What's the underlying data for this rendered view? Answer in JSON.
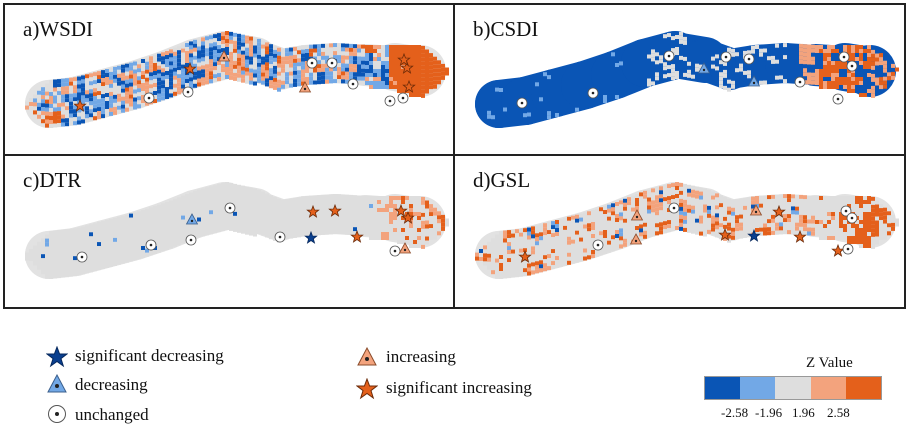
{
  "colors": {
    "sig_dec": "#0a55b5",
    "dec": "#72a8e6",
    "unchanged": "#dedede",
    "inc": "#f3a37d",
    "sig_inc": "#e4601b"
  },
  "panels": [
    {
      "id": "a",
      "label": "a)WSDI",
      "style": "mixed",
      "markers": [
        {
          "t": "sinc",
          "x": 185,
          "y": 64
        },
        {
          "t": "inc",
          "x": 219,
          "y": 52
        },
        {
          "t": "sinc",
          "x": 75,
          "y": 101
        },
        {
          "t": "unch",
          "x": 144,
          "y": 93
        },
        {
          "t": "unch",
          "x": 183,
          "y": 87
        },
        {
          "t": "inc",
          "x": 300,
          "y": 83
        },
        {
          "t": "unch",
          "x": 307,
          "y": 58
        },
        {
          "t": "unch",
          "x": 327,
          "y": 58
        },
        {
          "t": "unch",
          "x": 348,
          "y": 79
        },
        {
          "t": "unch",
          "x": 385,
          "y": 96
        },
        {
          "t": "unch",
          "x": 398,
          "y": 93
        },
        {
          "t": "sinc",
          "x": 402,
          "y": 63
        },
        {
          "t": "sinc",
          "x": 399,
          "y": 55
        },
        {
          "t": "sinc",
          "x": 404,
          "y": 82
        }
      ]
    },
    {
      "id": "b",
      "label": "b)CSDI",
      "style": "blue",
      "markers": [
        {
          "t": "unch",
          "x": 67,
          "y": 98
        },
        {
          "t": "unch",
          "x": 138,
          "y": 88
        },
        {
          "t": "unch",
          "x": 214,
          "y": 51
        },
        {
          "t": "dec",
          "x": 249,
          "y": 64
        },
        {
          "t": "unch",
          "x": 271,
          "y": 52
        },
        {
          "t": "unch",
          "x": 294,
          "y": 54
        },
        {
          "t": "dec",
          "x": 299,
          "y": 77
        },
        {
          "t": "unch",
          "x": 345,
          "y": 77
        },
        {
          "t": "unch",
          "x": 383,
          "y": 94
        },
        {
          "t": "unch",
          "x": 389,
          "y": 52
        },
        {
          "t": "unch",
          "x": 397,
          "y": 61
        }
      ]
    },
    {
      "id": "c",
      "label": "c)DTR",
      "style": "light",
      "markers": [
        {
          "t": "unch",
          "x": 77,
          "y": 101
        },
        {
          "t": "unch",
          "x": 146,
          "y": 89
        },
        {
          "t": "dec",
          "x": 187,
          "y": 64
        },
        {
          "t": "unch",
          "x": 186,
          "y": 84
        },
        {
          "t": "unch",
          "x": 225,
          "y": 52
        },
        {
          "t": "unch",
          "x": 275,
          "y": 81
        },
        {
          "t": "sinc",
          "x": 308,
          "y": 56
        },
        {
          "t": "sinc",
          "x": 330,
          "y": 55
        },
        {
          "t": "sdec",
          "x": 306,
          "y": 82
        },
        {
          "t": "sinc",
          "x": 352,
          "y": 81
        },
        {
          "t": "unch",
          "x": 390,
          "y": 95
        },
        {
          "t": "inc",
          "x": 400,
          "y": 93
        },
        {
          "t": "sinc",
          "x": 396,
          "y": 55
        },
        {
          "t": "sinc",
          "x": 403,
          "y": 62
        }
      ]
    },
    {
      "id": "d",
      "label": "d)GSL",
      "style": "light-orange",
      "markers": [
        {
          "t": "sinc",
          "x": 70,
          "y": 101
        },
        {
          "t": "unch",
          "x": 143,
          "y": 89
        },
        {
          "t": "inc",
          "x": 182,
          "y": 60
        },
        {
          "t": "inc",
          "x": 181,
          "y": 84
        },
        {
          "t": "unch",
          "x": 219,
          "y": 52
        },
        {
          "t": "inc",
          "x": 301,
          "y": 55
        },
        {
          "t": "sinc",
          "x": 270,
          "y": 79
        },
        {
          "t": "sdec",
          "x": 299,
          "y": 80
        },
        {
          "t": "sinc",
          "x": 324,
          "y": 56
        },
        {
          "t": "sinc",
          "x": 345,
          "y": 81
        },
        {
          "t": "sinc",
          "x": 383,
          "y": 95
        },
        {
          "t": "unch",
          "x": 393,
          "y": 93
        },
        {
          "t": "unch",
          "x": 391,
          "y": 55
        },
        {
          "t": "unch",
          "x": 397,
          "y": 62
        }
      ]
    }
  ],
  "legend": {
    "sig_dec": "significant decreasing",
    "dec": "decreasing",
    "unch": "unchanged",
    "inc": "increasing",
    "sinc": "significant increasing"
  },
  "zvalue": {
    "title": "Z Value",
    "ticks": [
      "-2.58",
      "-1.96",
      "1.96",
      "2.58"
    ]
  }
}
